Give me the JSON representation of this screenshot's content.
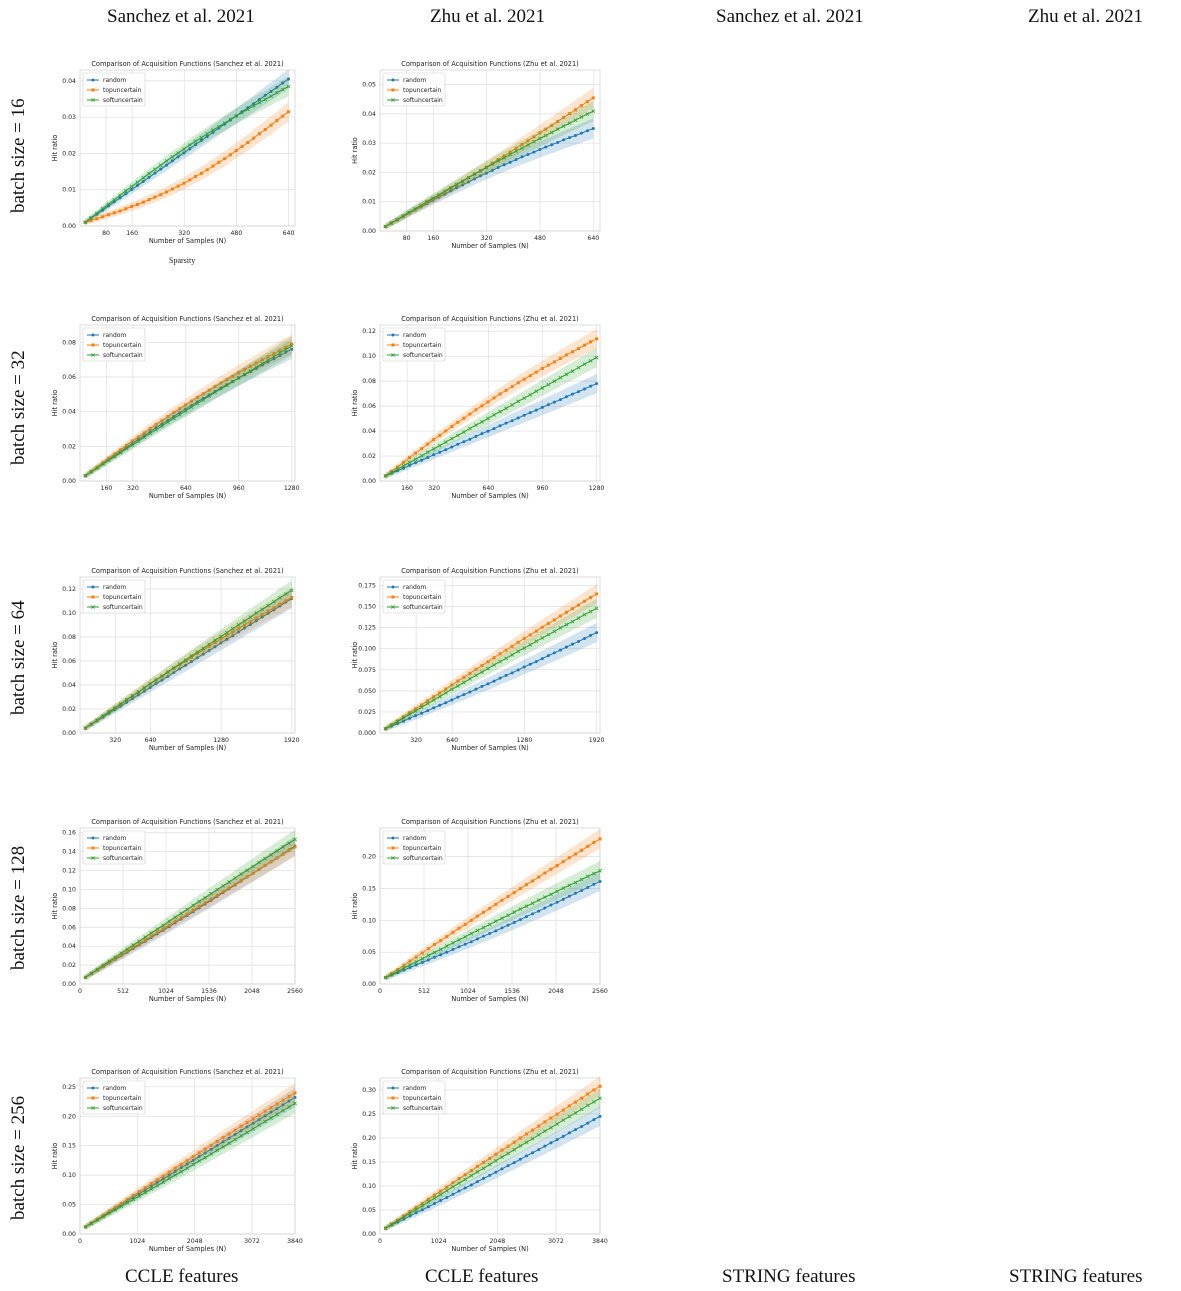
{
  "header": {
    "columns": [
      "Sanchez et al. 2021",
      "Zhu et al. 2021",
      "Sanchez et al. 2021",
      "Zhu et al. 2021"
    ]
  },
  "footer": {
    "columns": [
      "CCLE features",
      "CCLE features",
      "STRING features",
      "STRING features"
    ]
  },
  "rows": [
    "batch size = 16",
    "batch size = 32",
    "batch size = 64",
    "batch size = 128",
    "batch size = 256"
  ],
  "sparsity_label": "Sparsity",
  "colors": {
    "random": "#1f77b4",
    "topuncertain": "#ff7f0e",
    "softuncertain": "#2ca02c"
  },
  "chart_data": [
    {
      "type": "line",
      "title": "Comparison of Acquisition Functions (Sanchez et al. 2021)",
      "xlabel": "Number of Samples (N)",
      "ylabel": "Hit ratio",
      "xlim": [
        0,
        660
      ],
      "xticks": [
        80,
        160,
        320,
        480,
        640
      ],
      "ylim": [
        0,
        0.043
      ],
      "yticks": [
        "0.00",
        "0.01",
        "0.02",
        "0.03",
        "0.04"
      ],
      "series": [
        {
          "name": "random",
          "start": 0.001,
          "end": 0.0405,
          "bend": 0
        },
        {
          "name": "topuncertain",
          "start": 0.001,
          "end": 0.0315,
          "bend": -0.004
        },
        {
          "name": "softuncertain",
          "start": 0.001,
          "end": 0.0385,
          "bend": 0.002
        }
      ]
    },
    {
      "type": "line",
      "title": "Comparison of Acquisition Functions (Zhu et al. 2021)",
      "xlabel": "Number of Samples (N)",
      "ylabel": "Hit ratio",
      "xlim": [
        0,
        660
      ],
      "xticks": [
        80,
        160,
        320,
        480,
        640
      ],
      "ylim": [
        0,
        0.055
      ],
      "yticks": [
        "0.00",
        "0.01",
        "0.02",
        "0.03",
        "0.04",
        "0.05"
      ],
      "series": [
        {
          "name": "random",
          "start": 0.0015,
          "end": 0.035,
          "bend": 0.002
        },
        {
          "name": "topuncertain",
          "start": 0.0015,
          "end": 0.0455,
          "bend": -0.001
        },
        {
          "name": "softuncertain",
          "start": 0.0015,
          "end": 0.041,
          "bend": 0.001
        }
      ]
    },
    {
      "type": "line",
      "title": "Comparison of Acquisition Functions (Sanchez et al. 2021)",
      "xlabel": "Number of Samples (N)",
      "ylabel": "Hit ratio",
      "xlim": [
        0,
        1300
      ],
      "xticks": [
        160,
        320,
        640,
        960,
        1280
      ],
      "ylim": [
        0,
        0.09
      ],
      "yticks": [
        "0.00",
        "0.02",
        "0.04",
        "0.06",
        "0.08"
      ],
      "series": [
        {
          "name": "random",
          "start": 0.003,
          "end": 0.076,
          "bend": 0.003
        },
        {
          "name": "topuncertain",
          "start": 0.003,
          "end": 0.079,
          "bend": 0.004
        },
        {
          "name": "softuncertain",
          "start": 0.003,
          "end": 0.078,
          "bend": 0.001
        }
      ]
    },
    {
      "type": "line",
      "title": "Comparison of Acquisition Functions (Zhu et al. 2021)",
      "xlabel": "Number of Samples (N)",
      "ylabel": "Hit ratio",
      "xlim": [
        0,
        1300
      ],
      "xticks": [
        160,
        320,
        640,
        960,
        1280
      ],
      "ylim": [
        0,
        0.125
      ],
      "yticks": [
        "0.00",
        "0.02",
        "0.04",
        "0.06",
        "0.08",
        "0.10",
        "0.12"
      ],
      "series": [
        {
          "name": "random",
          "start": 0.004,
          "end": 0.078,
          "bend": 0
        },
        {
          "name": "topuncertain",
          "start": 0.004,
          "end": 0.114,
          "bend": 0.006
        },
        {
          "name": "softuncertain",
          "start": 0.004,
          "end": 0.099,
          "bend": 0
        }
      ]
    },
    {
      "type": "line",
      "title": "Comparison of Acquisition Functions (Sanchez et al. 2021)",
      "xlabel": "Number of Samples (N)",
      "ylabel": "Hit ratio",
      "xlim": [
        0,
        1950
      ],
      "xticks": [
        320,
        640,
        1280,
        1920
      ],
      "ylim": [
        0,
        0.13
      ],
      "yticks": [
        "0.00",
        "0.02",
        "0.04",
        "0.06",
        "0.08",
        "0.10",
        "0.12"
      ],
      "series": [
        {
          "name": "random",
          "start": 0.004,
          "end": 0.112,
          "bend": 0
        },
        {
          "name": "topuncertain",
          "start": 0.004,
          "end": 0.113,
          "bend": 0.003
        },
        {
          "name": "softuncertain",
          "start": 0.004,
          "end": 0.119,
          "bend": 0.001
        }
      ]
    },
    {
      "type": "line",
      "title": "Comparison of Acquisition Functions (Zhu et al. 2021)",
      "xlabel": "Number of Samples (N)",
      "ylabel": "Hit ratio",
      "xlim": [
        0,
        1950
      ],
      "xticks": [
        320,
        640,
        1280,
        1920
      ],
      "ylim": [
        0,
        0.185
      ],
      "yticks": [
        "0.000",
        "0.025",
        "0.050",
        "0.075",
        "0.100",
        "0.125",
        "0.150",
        "0.175"
      ],
      "series": [
        {
          "name": "random",
          "start": 0.005,
          "end": 0.119,
          "bend": -0.002
        },
        {
          "name": "topuncertain",
          "start": 0.005,
          "end": 0.165,
          "bend": 0.002
        },
        {
          "name": "softuncertain",
          "start": 0.005,
          "end": 0.148,
          "bend": 0.002
        }
      ]
    },
    {
      "type": "line",
      "title": "Comparison of Acquisition Functions (Sanchez et al. 2021)",
      "xlabel": "Number of Samples (N)",
      "ylabel": "Hit ratio",
      "xlim": [
        0,
        2560
      ],
      "xticks": [
        0,
        512,
        1024,
        1536,
        2048,
        2560
      ],
      "ylim": [
        0,
        0.165
      ],
      "yticks": [
        "0.00",
        "0.02",
        "0.04",
        "0.06",
        "0.08",
        "0.10",
        "0.12",
        "0.14",
        "0.16"
      ],
      "series": [
        {
          "name": "random",
          "start": 0.007,
          "end": 0.146,
          "bend": -0.002
        },
        {
          "name": "topuncertain",
          "start": 0.007,
          "end": 0.145,
          "bend": 0
        },
        {
          "name": "softuncertain",
          "start": 0.007,
          "end": 0.153,
          "bend": 0.001
        }
      ]
    },
    {
      "type": "line",
      "title": "Comparison of Acquisition Functions (Zhu et al. 2021)",
      "xlabel": "Number of Samples (N)",
      "ylabel": "Hit ratio",
      "xlim": [
        0,
        2560
      ],
      "xticks": [
        0,
        512,
        1024,
        1536,
        2048,
        2560
      ],
      "ylim": [
        0,
        0.245
      ],
      "yticks": [
        "0.00",
        "0.05",
        "0.10",
        "0.15",
        "0.20"
      ],
      "series": [
        {
          "name": "random",
          "start": 0.01,
          "end": 0.161,
          "bend": -0.004
        },
        {
          "name": "topuncertain",
          "start": 0.01,
          "end": 0.228,
          "bend": 0.003
        },
        {
          "name": "softuncertain",
          "start": 0.01,
          "end": 0.178,
          "bend": 0.002
        }
      ]
    },
    {
      "type": "line",
      "title": "Comparison of Acquisition Functions (Sanchez et al. 2021)",
      "xlabel": "Number of Samples (N)",
      "ylabel": "Hit ratio",
      "xlim": [
        0,
        3840
      ],
      "xticks": [
        0,
        1024,
        2048,
        3072,
        3840
      ],
      "ylim": [
        0,
        0.265
      ],
      "yticks": [
        "0.00",
        "0.05",
        "0.10",
        "0.15",
        "0.20",
        "0.25"
      ],
      "series": [
        {
          "name": "random",
          "start": 0.012,
          "end": 0.232,
          "bend": 0
        },
        {
          "name": "topuncertain",
          "start": 0.012,
          "end": 0.24,
          "bend": 0.002
        },
        {
          "name": "softuncertain",
          "start": 0.012,
          "end": 0.222,
          "bend": -0.002
        }
      ]
    },
    {
      "type": "line",
      "title": "Comparison of Acquisition Functions (Zhu et al. 2021)",
      "xlabel": "Number of Samples (N)",
      "ylabel": "Hit ratio",
      "xlim": [
        0,
        3840
      ],
      "xticks": [
        0,
        1024,
        2048,
        3072,
        3840
      ],
      "ylim": [
        0,
        0.325
      ],
      "yticks": [
        "0.00",
        "0.05",
        "0.10",
        "0.15",
        "0.20",
        "0.25",
        "0.30"
      ],
      "series": [
        {
          "name": "random",
          "start": 0.012,
          "end": 0.245,
          "bend": -0.003
        },
        {
          "name": "topuncertain",
          "start": 0.012,
          "end": 0.308,
          "bend": 0.002
        },
        {
          "name": "softuncertain",
          "start": 0.012,
          "end": 0.283,
          "bend": 0.001
        }
      ]
    }
  ]
}
